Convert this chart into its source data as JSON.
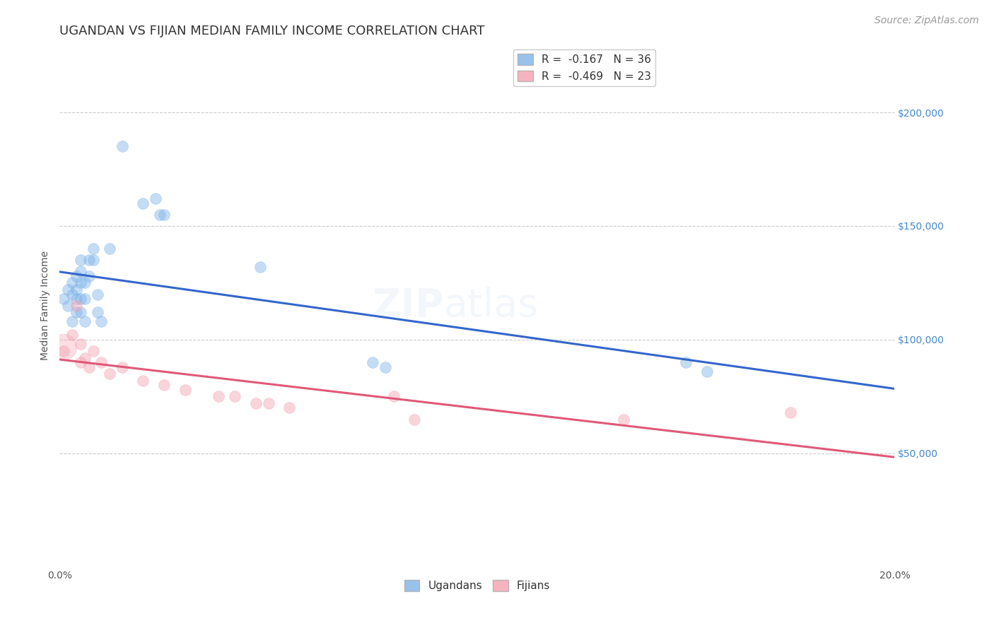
{
  "title": "UGANDAN VS FIJIAN MEDIAN FAMILY INCOME CORRELATION CHART",
  "source": "Source: ZipAtlas.com",
  "ylabel_label": "Median Family Income",
  "xlim": [
    0.0,
    0.2
  ],
  "ylim": [
    0,
    230000
  ],
  "yticks": [
    50000,
    100000,
    150000,
    200000
  ],
  "ytick_labels": [
    "$50,000",
    "$100,000",
    "$150,000",
    "$200,000"
  ],
  "xticks": [
    0.0,
    0.05,
    0.1,
    0.15,
    0.2
  ],
  "xtick_labels": [
    "0.0%",
    "",
    "",
    "",
    "20.0%"
  ],
  "background_color": "#ffffff",
  "grid_color": "#cccccc",
  "ugandan_color": "#7eb3e8",
  "fijian_color": "#f4a0b0",
  "ugandan_line_color": "#3366cc",
  "fijian_line_color": "#e05878",
  "legend_R_ugandan": "R =  -0.167   N = 36",
  "legend_R_fijian": "R =  -0.469   N = 23",
  "watermark_top": "ZIP",
  "watermark_bot": "atlas",
  "ugandan_x": [
    0.001,
    0.002,
    0.002,
    0.003,
    0.003,
    0.003,
    0.004,
    0.004,
    0.004,
    0.004,
    0.005,
    0.005,
    0.005,
    0.005,
    0.005,
    0.006,
    0.006,
    0.006,
    0.007,
    0.007,
    0.008,
    0.008,
    0.009,
    0.009,
    0.01,
    0.012,
    0.015,
    0.02,
    0.023,
    0.024,
    0.025,
    0.048,
    0.075,
    0.078,
    0.15,
    0.155
  ],
  "ugandan_y": [
    118000,
    122000,
    115000,
    125000,
    120000,
    108000,
    128000,
    122000,
    118000,
    112000,
    135000,
    130000,
    125000,
    118000,
    112000,
    125000,
    118000,
    108000,
    135000,
    128000,
    140000,
    135000,
    120000,
    112000,
    108000,
    140000,
    185000,
    160000,
    162000,
    155000,
    155000,
    132000,
    90000,
    88000,
    90000,
    86000
  ],
  "fijian_x": [
    0.001,
    0.003,
    0.004,
    0.005,
    0.005,
    0.006,
    0.007,
    0.008,
    0.01,
    0.012,
    0.015,
    0.02,
    0.025,
    0.03,
    0.038,
    0.042,
    0.047,
    0.05,
    0.055,
    0.08,
    0.085,
    0.135,
    0.175
  ],
  "fijian_y": [
    95000,
    102000,
    115000,
    98000,
    90000,
    92000,
    88000,
    95000,
    90000,
    85000,
    88000,
    82000,
    80000,
    78000,
    75000,
    75000,
    72000,
    72000,
    70000,
    75000,
    65000,
    65000,
    68000
  ],
  "marker_size": 130,
  "marker_alpha": 0.45,
  "line_width": 2.2,
  "title_fontsize": 13,
  "axis_label_fontsize": 10,
  "tick_label_fontsize": 10,
  "legend_fontsize": 11,
  "source_fontsize": 10,
  "watermark_fontsize_zip": 40,
  "watermark_fontsize_atlas": 40,
  "watermark_alpha": 0.07,
  "watermark_color": "#5599cc"
}
